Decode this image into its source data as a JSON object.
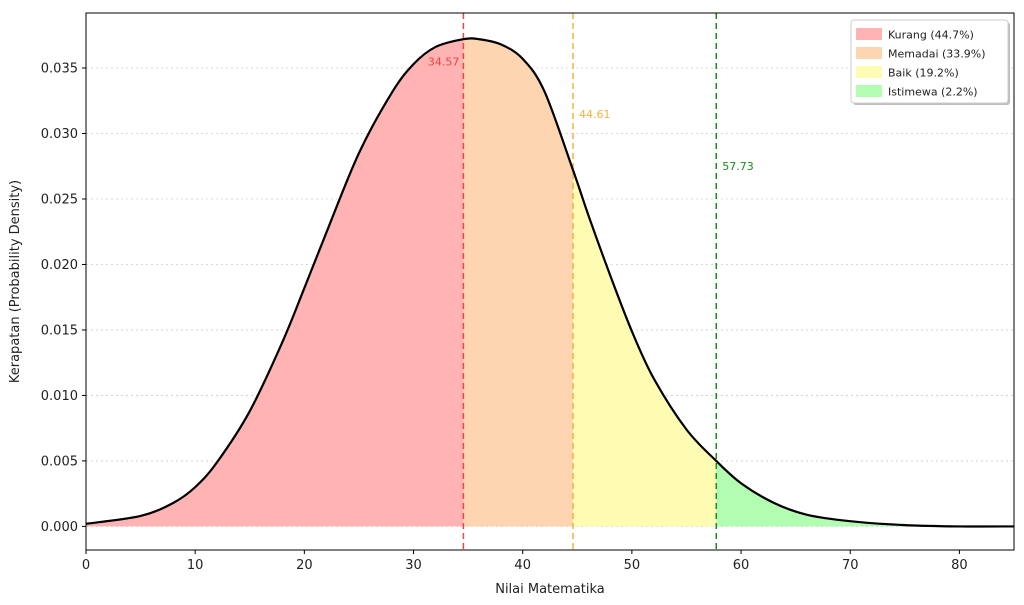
{
  "chart_data": {
    "type": "area",
    "title": "",
    "xlabel": "Nilai Matematika",
    "ylabel": "Kerapatan (Probability Density)",
    "xlim": [
      0,
      85
    ],
    "ylim": [
      -0.0018,
      0.0392
    ],
    "xticks": [
      0,
      10,
      20,
      30,
      40,
      50,
      60,
      70,
      80
    ],
    "yticks": [
      0.0,
      0.005,
      0.01,
      0.015,
      0.02,
      0.025,
      0.03,
      0.035
    ],
    "ytick_labels": [
      "0.000",
      "0.005",
      "0.010",
      "0.015",
      "0.020",
      "0.025",
      "0.030",
      "0.035"
    ],
    "grid": "horizontal dotted",
    "legend_position": "top-right",
    "curve": {
      "color": "#000000",
      "points": [
        {
          "x": 0,
          "y": 0.0002
        },
        {
          "x": 5,
          "y": 0.0008
        },
        {
          "x": 8,
          "y": 0.0018
        },
        {
          "x": 10,
          "y": 0.003
        },
        {
          "x": 12,
          "y": 0.0049
        },
        {
          "x": 15,
          "y": 0.0088
        },
        {
          "x": 18,
          "y": 0.0141
        },
        {
          "x": 20,
          "y": 0.0182
        },
        {
          "x": 22,
          "y": 0.0224
        },
        {
          "x": 25,
          "y": 0.0285
        },
        {
          "x": 28,
          "y": 0.0331
        },
        {
          "x": 30,
          "y": 0.0353
        },
        {
          "x": 32,
          "y": 0.0366
        },
        {
          "x": 34.57,
          "y": 0.0372
        },
        {
          "x": 36,
          "y": 0.0372
        },
        {
          "x": 38,
          "y": 0.0368
        },
        {
          "x": 40,
          "y": 0.0357
        },
        {
          "x": 42,
          "y": 0.0332
        },
        {
          "x": 44.61,
          "y": 0.0272
        },
        {
          "x": 46,
          "y": 0.0238
        },
        {
          "x": 48,
          "y": 0.0192
        },
        {
          "x": 50,
          "y": 0.0149
        },
        {
          "x": 52,
          "y": 0.0113
        },
        {
          "x": 55,
          "y": 0.0074
        },
        {
          "x": 57.73,
          "y": 0.005
        },
        {
          "x": 60,
          "y": 0.0033
        },
        {
          "x": 63,
          "y": 0.0018
        },
        {
          "x": 66,
          "y": 0.0009
        },
        {
          "x": 70,
          "y": 0.0004
        },
        {
          "x": 75,
          "y": 0.0001
        },
        {
          "x": 80,
          "y": 0.0
        },
        {
          "x": 85,
          "y": 0.0
        }
      ]
    },
    "regions": [
      {
        "name": "Kurang (44.7%)",
        "from": 0,
        "to": 34.57,
        "color": "#ffb3b3"
      },
      {
        "name": "Memadai (33.9%)",
        "from": 34.57,
        "to": 44.61,
        "color": "#fdd5b0"
      },
      {
        "name": "Baik (19.2%)",
        "from": 44.61,
        "to": 57.73,
        "color": "#fefcb3"
      },
      {
        "name": "Istimewa (2.2%)",
        "from": 57.73,
        "to": 85,
        "color": "#b2fdb2"
      }
    ],
    "thresholds": [
      {
        "x": 34.57,
        "label": "34.57",
        "color": "#ee4444",
        "label_y": 0.0352,
        "align": "end"
      },
      {
        "x": 44.61,
        "label": "44.61",
        "color": "#f5b142",
        "label_y": 0.0312,
        "align": "start"
      },
      {
        "x": 57.73,
        "label": "57.73",
        "color": "#1a8a1a",
        "label_y": 0.0272,
        "align": "start"
      }
    ]
  }
}
